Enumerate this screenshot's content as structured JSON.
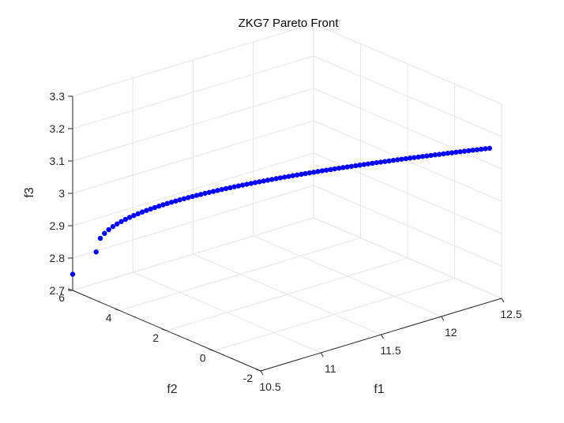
{
  "chart_data": {
    "type": "scatter",
    "projection": "3d",
    "title": "ZKG7 Pareto Front",
    "xlabel": "f1",
    "ylabel": "f2",
    "zlabel": "f3",
    "xlim": [
      10.5,
      12.5
    ],
    "ylim": [
      -2,
      6
    ],
    "zlim": [
      2.7,
      3.3
    ],
    "xticks": [
      "10.5",
      "11",
      "11.5",
      "12",
      "12.5"
    ],
    "yticks": [
      "-2",
      "0",
      "2",
      "4",
      "6"
    ],
    "zticks": [
      "2.7",
      "2.8",
      "2.9",
      "3",
      "3.1",
      "3.2",
      "3.3"
    ],
    "grid": true,
    "marker_color": "#0000ff",
    "curve": {
      "n_points": 95,
      "x_range": [
        10.5,
        12.4
      ],
      "y_range": [
        5.0,
        -2.0
      ],
      "z_range": [
        2.85,
        3.175
      ],
      "z_exponent": 0.45
    },
    "outlier": {
      "x": 10.5,
      "y": 6.0,
      "z": 2.75
    }
  }
}
